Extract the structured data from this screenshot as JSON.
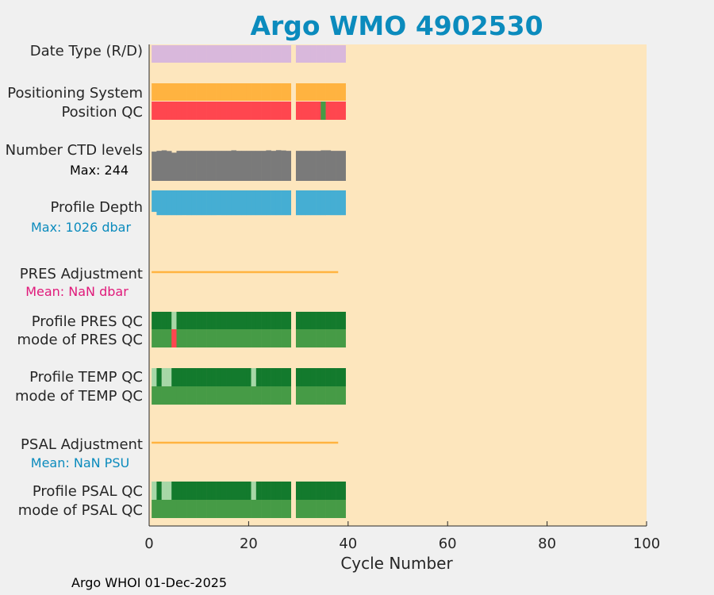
{
  "chart_data": {
    "type": "heatmap",
    "title": "Argo WMO 4902530",
    "xlabel": "Cycle Number",
    "xlim": [
      0,
      100
    ],
    "x_ticks": [
      "0",
      "20",
      "40",
      "60",
      "80",
      "100"
    ],
    "n_cycles": 39,
    "missing_cycles": [
      28
    ],
    "rows": [
      {
        "label": "Date Type (R/D)",
        "kind": "qc",
        "values": [
          "R",
          "R",
          "R",
          "R",
          "R",
          "R",
          "R",
          "R",
          "R",
          "R",
          "R",
          "R",
          "R",
          "R",
          "R",
          "R",
          "R",
          "R",
          "R",
          "R",
          "R",
          "R",
          "R",
          "R",
          "R",
          "R",
          "R",
          "R",
          "-",
          "R",
          "R",
          "R",
          "R",
          "R",
          "R",
          "R",
          "R",
          "R",
          "R"
        ]
      },
      {
        "label": "Positioning System",
        "kind": "qc",
        "values": [
          "GPS",
          "GPS",
          "GPS",
          "GPS",
          "GPS",
          "GPS",
          "GPS",
          "GPS",
          "GPS",
          "GPS",
          "GPS",
          "GPS",
          "GPS",
          "GPS",
          "GPS",
          "GPS",
          "GPS",
          "GPS",
          "GPS",
          "GPS",
          "GPS",
          "GPS",
          "GPS",
          "GPS",
          "GPS",
          "GPS",
          "GPS",
          "GPS",
          "-",
          "GPS",
          "GPS",
          "GPS",
          "GPS",
          "GPS",
          "GPS",
          "GPS",
          "GPS",
          "GPS",
          "GPS"
        ]
      },
      {
        "label": "Position QC",
        "kind": "qc",
        "values": [
          "4",
          "4",
          "4",
          "4",
          "4",
          "4",
          "4",
          "4",
          "4",
          "4",
          "4",
          "4",
          "4",
          "4",
          "4",
          "4",
          "4",
          "4",
          "4",
          "4",
          "4",
          "4",
          "4",
          "4",
          "4",
          "4",
          "4",
          "4",
          "-",
          "4",
          "4",
          "4",
          "4",
          "4",
          "1",
          "4",
          "4",
          "4",
          "4"
        ]
      },
      {
        "label": "Number CTD levels",
        "note": "Max: 244",
        "kind": "bar",
        "max": 244,
        "values": [
          225,
          231,
          235,
          230,
          217,
          231,
          231,
          231,
          231,
          231,
          231,
          231,
          231,
          231,
          231,
          231,
          235,
          231,
          231,
          231,
          231,
          231,
          231,
          235,
          231,
          236,
          234,
          231,
          0,
          231,
          231,
          231,
          231,
          231,
          235,
          235,
          231,
          231,
          231
        ]
      },
      {
        "label": "Profile Depth",
        "note": "Max: 1026 dbar",
        "kind": "bar_down",
        "max": 1026,
        "values": [
          868,
          1000,
          1001,
          1001,
          1001,
          1001,
          1000,
          1001,
          1001,
          1001,
          1001,
          1001,
          1001,
          1000,
          1001,
          1001,
          1001,
          1001,
          1001,
          1001,
          1001,
          1001,
          1001,
          1001,
          1001,
          1001,
          1001,
          1001,
          0,
          1001,
          1001,
          1001,
          1001,
          1001,
          1001,
          1000,
          1001,
          1001,
          1001
        ]
      },
      {
        "label": "PRES Adjustment",
        "note": "Mean:  NaN dbar",
        "kind": "line",
        "mean": "NaN",
        "x_range": [
          0.5,
          38
        ]
      },
      {
        "label": "Profile PRES QC",
        "kind": "qc",
        "values": [
          "A",
          "A",
          "A",
          "A",
          "B",
          "A",
          "A",
          "A",
          "A",
          "A",
          "A",
          "A",
          "A",
          "A",
          "A",
          "A",
          "A",
          "A",
          "A",
          "A",
          "A",
          "A",
          "A",
          "A",
          "A",
          "A",
          "A",
          "A",
          "-",
          "A",
          "A",
          "A",
          "A",
          "A",
          "A",
          "A",
          "A",
          "A",
          "A"
        ]
      },
      {
        "label": "mode of PRES QC",
        "kind": "qc",
        "values": [
          "1",
          "1",
          "1",
          "1",
          "4",
          "1",
          "1",
          "1",
          "1",
          "1",
          "1",
          "1",
          "1",
          "1",
          "1",
          "1",
          "1",
          "1",
          "1",
          "1",
          "1",
          "1",
          "1",
          "1",
          "1",
          "1",
          "1",
          "1",
          "-",
          "1",
          "1",
          "1",
          "1",
          "1",
          "1",
          "1",
          "1",
          "1",
          "1"
        ]
      },
      {
        "label": "Profile TEMP QC",
        "kind": "qc",
        "values": [
          "B",
          "A",
          "B",
          "B",
          "A",
          "A",
          "A",
          "A",
          "A",
          "A",
          "A",
          "A",
          "A",
          "A",
          "A",
          "A",
          "A",
          "A",
          "A",
          "A",
          "B",
          "A",
          "A",
          "A",
          "A",
          "A",
          "A",
          "A",
          "-",
          "A",
          "A",
          "A",
          "A",
          "A",
          "A",
          "A",
          "A",
          "A",
          "A"
        ]
      },
      {
        "label": "mode of TEMP QC",
        "kind": "qc",
        "values": [
          "1",
          "1",
          "1",
          "1",
          "1",
          "1",
          "1",
          "1",
          "1",
          "1",
          "1",
          "1",
          "1",
          "1",
          "1",
          "1",
          "1",
          "1",
          "1",
          "1",
          "1",
          "1",
          "1",
          "1",
          "1",
          "1",
          "1",
          "1",
          "-",
          "1",
          "1",
          "1",
          "1",
          "1",
          "1",
          "1",
          "1",
          "1",
          "1"
        ]
      },
      {
        "label": "PSAL Adjustment",
        "note": "Mean:  NaN PSU",
        "kind": "line",
        "mean": "NaN",
        "x_range": [
          0.5,
          38
        ]
      },
      {
        "label": "Profile PSAL QC",
        "kind": "qc",
        "values": [
          "B",
          "A",
          "B",
          "B",
          "A",
          "A",
          "A",
          "A",
          "A",
          "A",
          "A",
          "A",
          "A",
          "A",
          "A",
          "A",
          "A",
          "A",
          "A",
          "A",
          "B",
          "A",
          "A",
          "A",
          "A",
          "A",
          "A",
          "A",
          "-",
          "A",
          "A",
          "A",
          "A",
          "A",
          "A",
          "A",
          "A",
          "A",
          "A"
        ]
      },
      {
        "label": "mode of PSAL QC",
        "kind": "qc",
        "values": [
          "1",
          "1",
          "1",
          "1",
          "1",
          "1",
          "1",
          "1",
          "1",
          "1",
          "1",
          "1",
          "1",
          "1",
          "1",
          "1",
          "1",
          "1",
          "1",
          "1",
          "1",
          "1",
          "1",
          "1",
          "1",
          "1",
          "1",
          "1",
          "-",
          "1",
          "1",
          "1",
          "1",
          "1",
          "1",
          "1",
          "1",
          "1",
          "1"
        ]
      }
    ],
    "colors": {
      "background": "#fde6bd",
      "figure": "#f0f0f0",
      "title": "#0b8bbd",
      "R": "#d9b8dc",
      "GPS": "#ffb340",
      "4": "#ff464f",
      "1": "#469b46",
      "A": "#137a2d",
      "B": "#a7d7a7",
      "ctd_bar": "#7a7a7a",
      "depth_bar": "#45aed3",
      "adjustment_line": "#ffb340",
      "note_ctd": "#000000",
      "note_depth": "#0b8bbd",
      "note_pres": "#e0197a",
      "note_psal": "#0b8bbd"
    }
  },
  "footer": "Argo WHOI 01-Dec-2025"
}
